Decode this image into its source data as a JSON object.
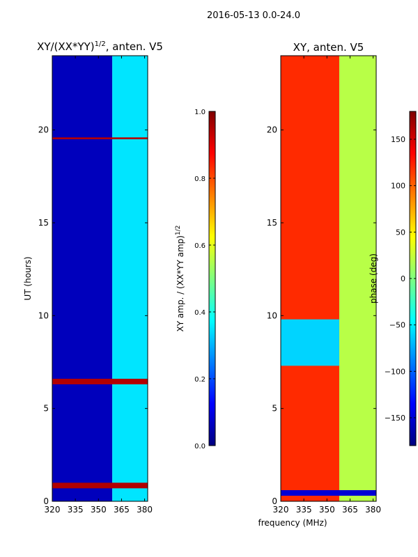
{
  "suptitle": "2016-05-13 0.0-24.0",
  "colors": {
    "axis": "#000000",
    "jet": [
      "#00007f",
      "#0000ff",
      "#007fff",
      "#00ffff",
      "#7fff7f",
      "#ffff00",
      "#ff7f00",
      "#ff0000",
      "#7f0000"
    ]
  },
  "chart_data": [
    {
      "type": "heatmap",
      "title_main": "XY/(XX*YY)",
      "title_sup": "1/2",
      "title_rest": ", anten. V5",
      "xlabel": "",
      "ylabel": "UT (hours)",
      "xlim": [
        320,
        382
      ],
      "ylim": [
        0,
        24
      ],
      "xticks": [
        "320",
        "335",
        "350",
        "365",
        "380"
      ],
      "xtick_values": [
        320,
        335,
        350,
        365,
        380
      ],
      "yticks": [
        "0",
        "5",
        "10",
        "15",
        "20"
      ],
      "ytick_values": [
        0,
        5,
        10,
        15,
        20
      ],
      "colorbar": {
        "label_main": "XY amp. / (XX*YY amp)",
        "label_sup": "1/2",
        "range": [
          0.0,
          1.0
        ],
        "ticks": [
          "0.0",
          "0.2",
          "0.4",
          "0.6",
          "0.8",
          "1.0"
        ],
        "tick_values": [
          0.0,
          0.2,
          0.4,
          0.6,
          0.8,
          1.0
        ]
      },
      "regions": [
        {
          "x": [
            320,
            359
          ],
          "y": [
            0,
            24
          ],
          "value": 0.06
        },
        {
          "x": [
            359,
            382
          ],
          "y": [
            0,
            24
          ],
          "value": 0.35
        },
        {
          "x": [
            320,
            382
          ],
          "y": [
            0.7,
            1.0
          ],
          "value": 0.95
        },
        {
          "x": [
            320,
            382
          ],
          "y": [
            6.3,
            6.6
          ],
          "value": 0.95
        },
        {
          "x": [
            320,
            382
          ],
          "y": [
            19.5,
            19.6
          ],
          "value": 0.95
        }
      ]
    },
    {
      "type": "heatmap",
      "title_main": "XY, anten. V5",
      "xlabel": "frequency (MHz)",
      "ylabel": "",
      "xlim": [
        320,
        382
      ],
      "ylim": [
        0,
        24
      ],
      "xticks": [
        "320",
        "335",
        "350",
        "365",
        "380"
      ],
      "xtick_values": [
        320,
        335,
        350,
        365,
        380
      ],
      "yticks": [
        "0",
        "5",
        "10",
        "15",
        "20"
      ],
      "ytick_values": [
        0,
        5,
        10,
        15,
        20
      ],
      "colorbar": {
        "label_main": "phase (deg)",
        "range": [
          -180,
          180
        ],
        "ticks": [
          "−150",
          "−100",
          "−50",
          "0",
          "50",
          "100",
          "150"
        ],
        "tick_values": [
          -150,
          -100,
          -50,
          0,
          50,
          100,
          150
        ]
      },
      "regions": [
        {
          "x": [
            320,
            358
          ],
          "y": [
            0,
            24
          ],
          "value": 120
        },
        {
          "x": [
            358,
            382
          ],
          "y": [
            0,
            24
          ],
          "value": 20
        },
        {
          "x": [
            320,
            358
          ],
          "y": [
            7.3,
            9.8
          ],
          "value": -60
        },
        {
          "x": [
            320,
            382
          ],
          "y": [
            0.3,
            0.6
          ],
          "value": -150
        }
      ]
    }
  ]
}
